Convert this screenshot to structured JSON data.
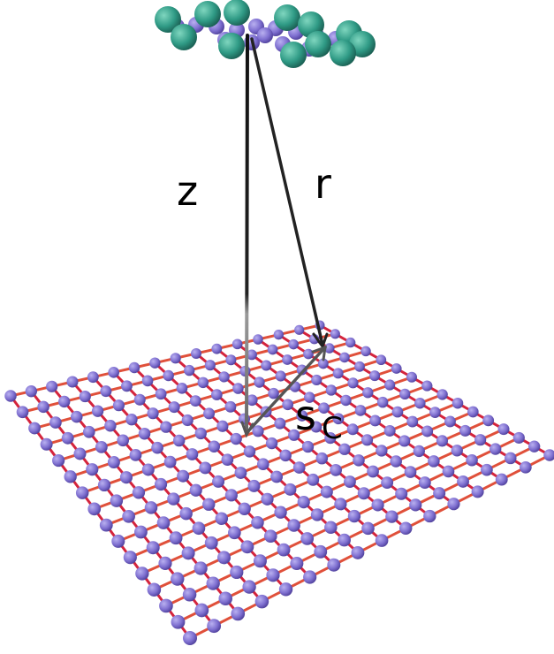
{
  "labels": {
    "z": "z",
    "r": "r",
    "s": "s",
    "s_subscript": "C"
  }
}
